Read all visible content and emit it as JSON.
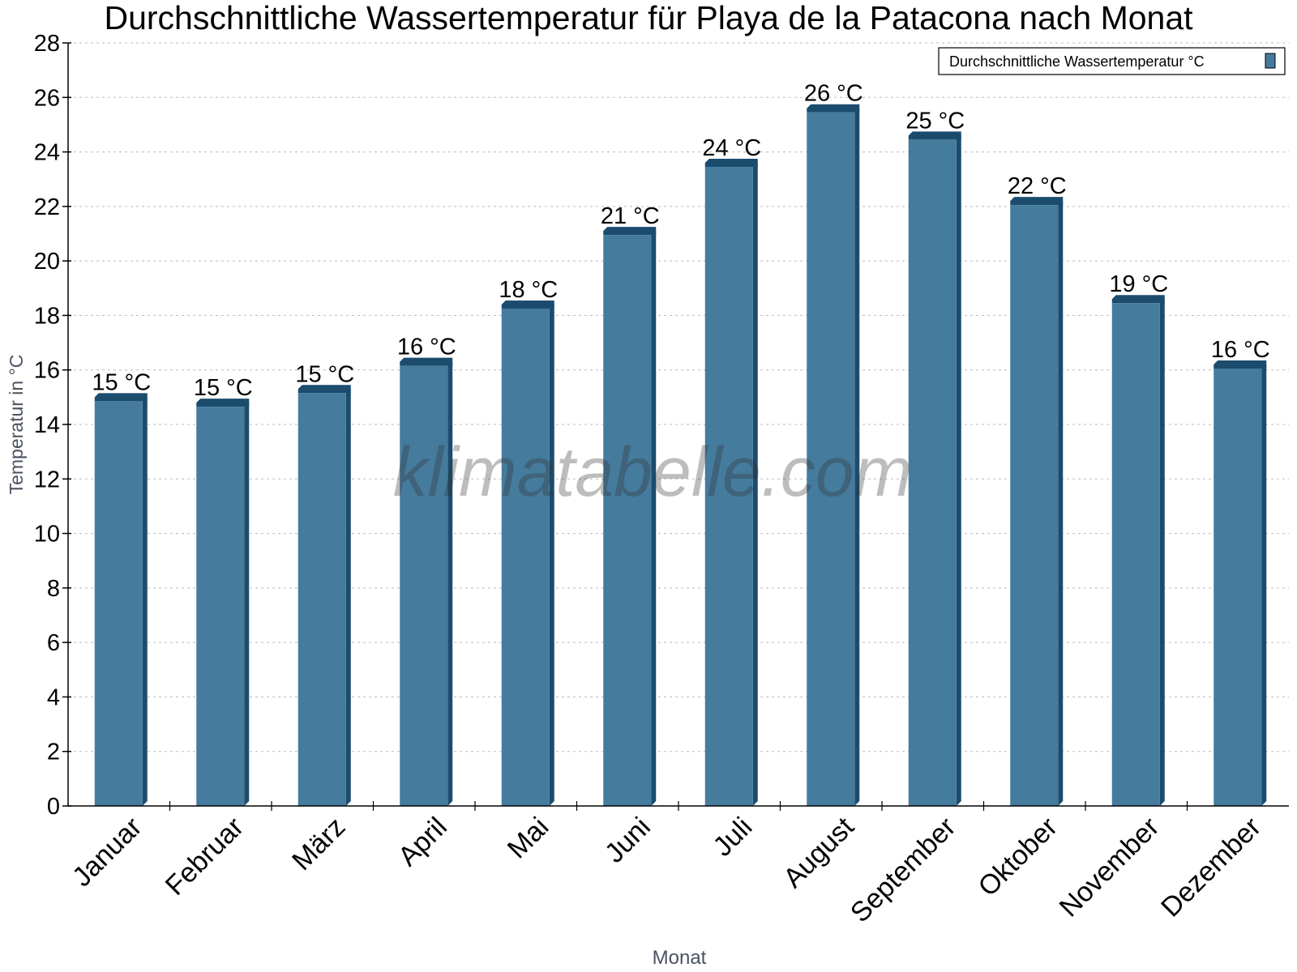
{
  "chart_data": {
    "type": "bar",
    "title": "Durchschnittliche Wassertemperatur für Playa de la Patacona nach Monat",
    "xlabel": "Monat",
    "ylabel": "Temperatur in °C",
    "ylim": [
      0,
      28
    ],
    "yticks": [
      "0",
      "2",
      "4",
      "6",
      "8",
      "10",
      "12",
      "14",
      "16",
      "18",
      "20",
      "22",
      "24",
      "26",
      "28"
    ],
    "grid": true,
    "legend_position": "top-right",
    "categories": [
      "Januar",
      "Februar",
      "März",
      "April",
      "Mai",
      "Juni",
      "Juli",
      "August",
      "September",
      "Oktober",
      "November",
      "Dezember"
    ],
    "series": [
      {
        "name": "Durchschnittliche Wassertemperatur °C",
        "color": "#457b9d",
        "values": [
          15.0,
          14.8,
          15.3,
          16.3,
          18.4,
          21.1,
          23.6,
          25.6,
          24.6,
          22.2,
          18.6,
          16.2
        ],
        "labels": [
          "15 °C",
          "15 °C",
          "15 °C",
          "16 °C",
          "18 °C",
          "21 °C",
          "24 °C",
          "26 °C",
          "25 °C",
          "22 °C",
          "19 °C",
          "16 °C"
        ]
      }
    ],
    "watermark": "klimatabelle.com"
  }
}
